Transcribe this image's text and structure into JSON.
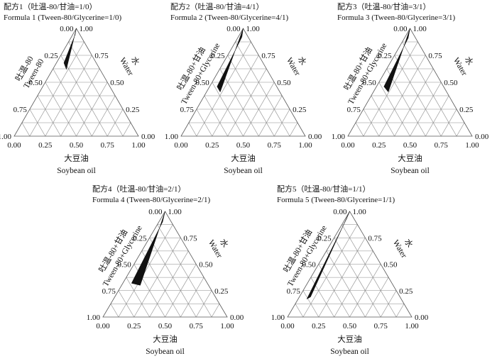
{
  "chart_data": [
    {
      "type": "ternary",
      "title_cn": "配方1（吐温-80/甘油=1/0）",
      "title_en": "Formula 1 (Tween-80/Glycerine=1/0)",
      "left_axis_cn": "吐温-80",
      "left_axis_en": "Tween-80",
      "right_axis_cn": "水",
      "right_axis_en": "Water",
      "bottom_axis_cn": "大豆油",
      "bottom_axis_en": "Soybean oil",
      "ticks": [
        "0.00",
        "0.25",
        "0.50",
        "0.75",
        "1.00"
      ],
      "grid_divisions": 8,
      "region": [
        {
          "oil": 0.0,
          "water": 0.0
        },
        {
          "oil": 0.02,
          "water": 0.04
        },
        {
          "oil": 0.06,
          "water": 0.26
        },
        {
          "oil": 0.11,
          "water": 0.27
        }
      ]
    },
    {
      "type": "ternary",
      "title_cn": "配方2（吐温-80/甘油=4/1）",
      "title_en": "Formula 2 (Tween-80/Glycerine=4/1)",
      "left_axis_cn": "吐温-80+甘油",
      "left_axis_en": "Tween-80+Glycerine",
      "right_axis_cn": "水",
      "right_axis_en": "Water",
      "bottom_axis_cn": "大豆油",
      "bottom_axis_en": "Soybean oil",
      "ticks": [
        "0.00",
        "0.25",
        "0.50",
        "0.75",
        "1.00"
      ],
      "grid_divisions": 8,
      "region": [
        {
          "oil": 0.0,
          "water": 0.0
        },
        {
          "oil": 0.03,
          "water": 0.05
        },
        {
          "oil": 0.06,
          "water": 0.48
        },
        {
          "oil": 0.11,
          "water": 0.48
        }
      ]
    },
    {
      "type": "ternary",
      "title_cn": "配方3（吐温-80/甘油=3/1）",
      "title_en": "Formula 3 (Tween-80/Glycerine=3/1)",
      "left_axis_cn": "吐温-80+甘油",
      "left_axis_en": "Tween-80+Glycerine",
      "right_axis_cn": "水",
      "right_axis_en": "Water",
      "bottom_axis_cn": "大豆油",
      "bottom_axis_en": "Soybean oil",
      "ticks": [
        "0.00",
        "0.25",
        "0.50",
        "0.75",
        "1.00"
      ],
      "grid_divisions": 8,
      "region": [
        {
          "oil": 0.0,
          "water": 0.0
        },
        {
          "oil": 0.03,
          "water": 0.06
        },
        {
          "oil": 0.06,
          "water": 0.48
        },
        {
          "oil": 0.12,
          "water": 0.47
        }
      ]
    },
    {
      "type": "ternary",
      "title_cn": "配方4（吐温-80/甘油=2/1）",
      "title_en": "Formula 4 (Tween-80/Glycerine=2/1)",
      "left_axis_cn": "吐温-80+甘油",
      "left_axis_en": "Tween-80+Glycerine",
      "right_axis_cn": "水",
      "right_axis_en": "Water",
      "bottom_axis_cn": "大豆油",
      "bottom_axis_en": "Soybean oil",
      "ticks": [
        "0.00",
        "0.25",
        "0.50",
        "0.75",
        "1.00"
      ],
      "grid_divisions": 8,
      "region": [
        {
          "oil": 0.0,
          "water": 0.0
        },
        {
          "oil": 0.03,
          "water": 0.07
        },
        {
          "oil": 0.07,
          "water": 0.61
        },
        {
          "oil": 0.15,
          "water": 0.55
        }
      ]
    },
    {
      "type": "ternary",
      "title_cn": "配方5（吐温-80/甘油=1/1）",
      "title_en": "Formula 5 (Tween-80/Glycerine=1/1)",
      "left_axis_cn": "吐温-80+甘油",
      "left_axis_en": "Tween-80+Glycerine",
      "right_axis_cn": "水",
      "right_axis_en": "Water",
      "bottom_axis_cn": "大豆油",
      "bottom_axis_en": "Soybean oil",
      "ticks": [
        "0.00",
        "0.25",
        "0.50",
        "0.75",
        "1.00"
      ],
      "grid_divisions": 8,
      "region": [
        {
          "oil": 0.0,
          "water": 0.0
        },
        {
          "oil": 0.01,
          "water": 0.06
        },
        {
          "oil": 0.07,
          "water": 0.76
        },
        {
          "oil": 0.09,
          "water": 0.72
        }
      ]
    }
  ]
}
